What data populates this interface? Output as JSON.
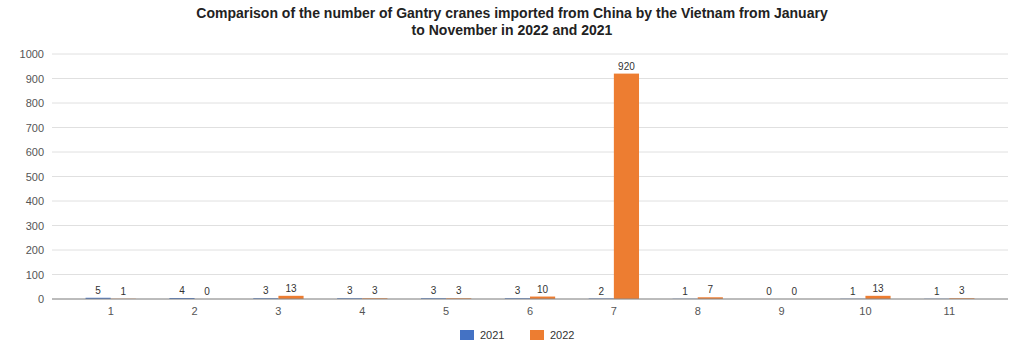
{
  "chart_data": {
    "type": "bar",
    "title": "Comparison of the number of Gantry cranes imported from China by the Vietnam from January\nto November in 2022 and 2021",
    "x": [
      1,
      2,
      3,
      4,
      5,
      6,
      7,
      8,
      9,
      10,
      11
    ],
    "series": [
      {
        "name": "2021",
        "color": "#4472c4",
        "values": [
          5,
          4,
          3,
          3,
          3,
          3,
          2,
          1,
          0,
          1,
          1
        ]
      },
      {
        "name": "2022",
        "color": "#ed7d31",
        "values": [
          1,
          0,
          13,
          3,
          3,
          10,
          920,
          7,
          0,
          13,
          3
        ]
      }
    ],
    "xlim": [
      0.3,
      11.7
    ],
    "xticks": [
      1,
      2,
      3,
      4,
      5,
      6,
      7,
      8,
      9,
      10,
      11
    ],
    "ylim": [
      0,
      1000
    ],
    "yticks": [
      0,
      100,
      200,
      300,
      400,
      500,
      600,
      700,
      800,
      900,
      1000
    ],
    "grid": true,
    "legend": "bottom",
    "data_labels": true
  }
}
